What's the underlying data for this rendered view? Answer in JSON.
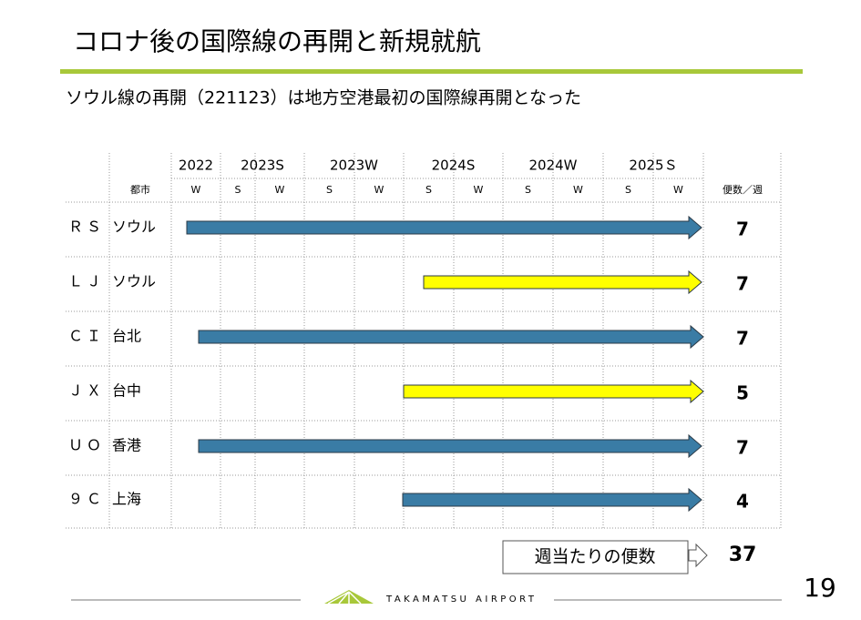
{
  "header": {
    "title": "コロナ後の国際線の再開と新規就航"
  },
  "subtitle": "ソウル線の再開（221123）は地方空港最初の国際線再開となった",
  "table": {
    "years": [
      "2022",
      "2023S",
      "2023W",
      "2024S",
      "2024W",
      "2025Ｓ"
    ],
    "city_header": "都市",
    "seasons": [
      "W",
      "S",
      "W",
      "S",
      "W",
      "S",
      "W",
      "S",
      "W",
      "S",
      "W"
    ],
    "frequency_header": "便数／週",
    "rows": [
      {
        "code": "ＲＳ",
        "city": "ソウル",
        "frequency": 7
      },
      {
        "code": "ＬＪ",
        "city": "ソウル",
        "frequency": 7
      },
      {
        "code": "ＣＩ",
        "city": "台北",
        "frequency": 7
      },
      {
        "code": "ＪＸ",
        "city": "台中",
        "frequency": 5
      },
      {
        "code": "ＵＯ",
        "city": "香港",
        "frequency": 7
      },
      {
        "code": "９Ｃ",
        "city": "上海",
        "frequency": 4
      }
    ]
  },
  "total": {
    "label": "週当たりの便数",
    "value": 37
  },
  "footer": {
    "logo": "TAKAMATSU AIRPORT",
    "page": "19"
  }
}
